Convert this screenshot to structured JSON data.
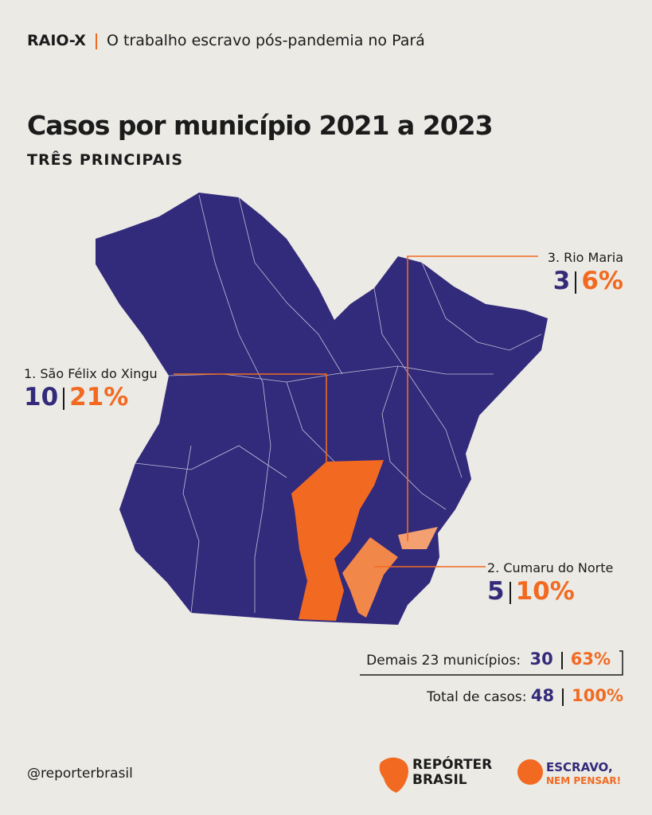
{
  "header": {
    "kicker": "RAIO-X",
    "subtitle": "O trabalho escravo pós-pandemia no Pará"
  },
  "title": "Casos por município 2021 a 2023",
  "subtitle": "TRÊS PRINCIPAIS",
  "municipalities": [
    {
      "label": "1. São Félix do Xingu",
      "cases": "10",
      "share": "21%"
    },
    {
      "label": "2. Cumaru do Norte",
      "cases": "5",
      "share": "10%"
    },
    {
      "label": "3. Rio Maria",
      "cases": "3",
      "share": "6%"
    }
  ],
  "summary": {
    "others": {
      "label": "Demais 23 municípios:",
      "cases": "30",
      "share": "63%"
    },
    "total": {
      "label": "Total de casos:",
      "cases": "48",
      "share": "100%"
    }
  },
  "footer": {
    "handle": "@reporterbrasil",
    "logo1": [
      "REPÓRTER",
      "BRASIL"
    ],
    "logo2": [
      "ESCRAVO,",
      "NEM PENSAR!"
    ]
  }
}
